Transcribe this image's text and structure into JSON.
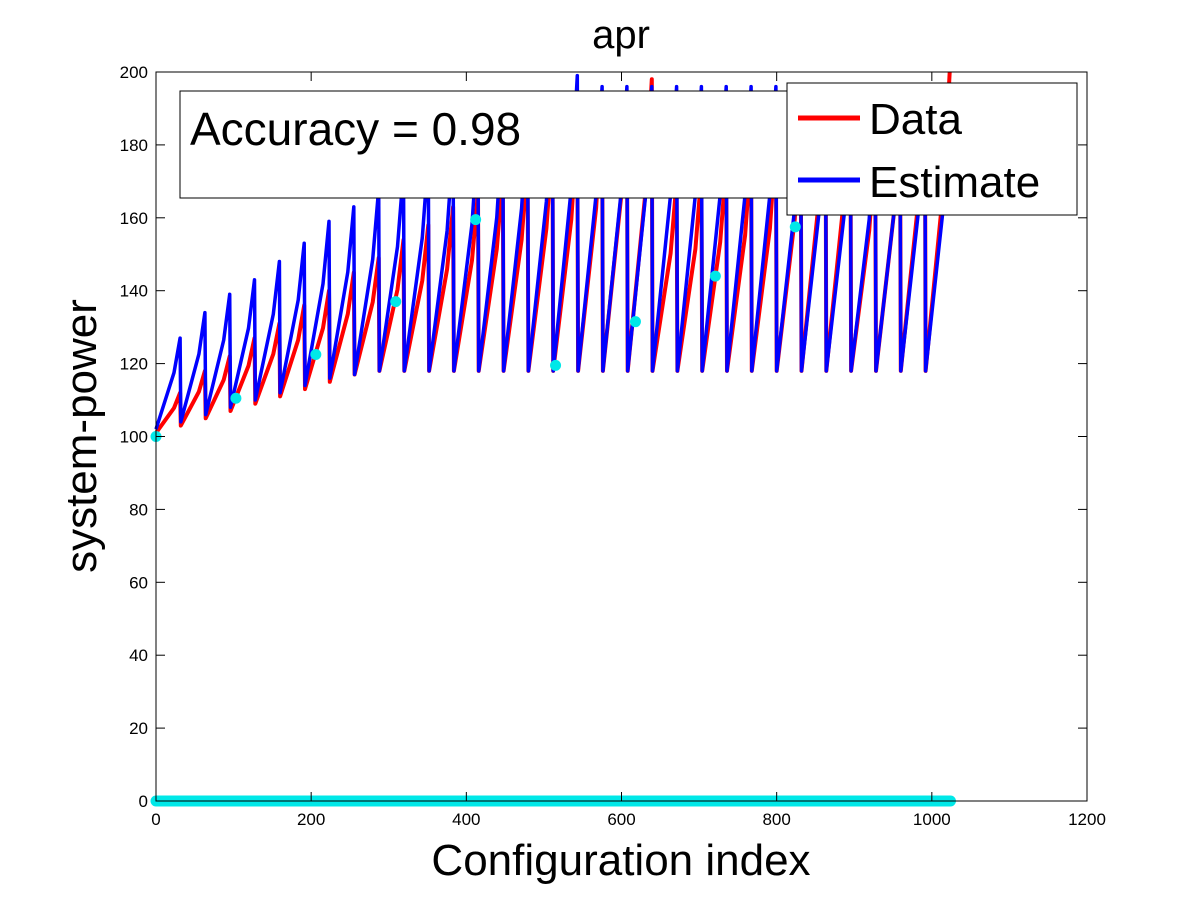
{
  "chart_data": {
    "type": "line",
    "title": "apr",
    "xlabel": "Configuration index",
    "ylabel": "system-power",
    "xlim": [
      0,
      1200
    ],
    "ylim": [
      0,
      200
    ],
    "xticks": [
      0,
      200,
      400,
      600,
      800,
      1000,
      1200
    ],
    "yticks": [
      0,
      20,
      40,
      60,
      80,
      100,
      120,
      140,
      160,
      180,
      200
    ],
    "grid": false,
    "legend_position": "top-right",
    "annotation": "Accuracy = 0.98",
    "cycle_length": 32,
    "series": [
      {
        "name": "Data",
        "color": "#ff0000",
        "cycle_start": [
          101,
          103,
          105,
          107,
          109,
          111,
          113,
          115,
          117,
          118,
          118,
          118,
          118,
          118,
          118,
          118,
          118,
          118,
          118,
          118,
          118,
          118,
          118,
          118,
          118,
          118,
          118,
          118,
          118,
          118,
          118,
          118
        ],
        "cycle_end": [
          112,
          118,
          122,
          127,
          131,
          136,
          140,
          145,
          149,
          154,
          158,
          163,
          167,
          172,
          176,
          181,
          185,
          190,
          194,
          198,
          170,
          172,
          175,
          178,
          181,
          185,
          196,
          196,
          180,
          188,
          195,
          200
        ]
      },
      {
        "name": "Estimate",
        "color": "#0000ff",
        "cycle_start": [
          102,
          104,
          106,
          108,
          110,
          112,
          114,
          116,
          117,
          118,
          118,
          118,
          118,
          118,
          118,
          118,
          118,
          118,
          118,
          118,
          118,
          118,
          118,
          118,
          118,
          118,
          118,
          118,
          118,
          118,
          118,
          118
        ],
        "cycle_end": [
          127,
          134,
          139,
          143,
          148,
          153,
          159,
          163,
          168,
          173,
          177,
          180,
          183,
          186,
          190,
          193,
          199,
          196,
          196,
          196,
          196,
          196,
          196,
          196,
          196,
          190,
          190,
          188,
          185,
          188,
          190,
          192
        ]
      }
    ],
    "markers": {
      "color": "#00e8e8",
      "x": [
        0,
        103,
        206,
        309,
        412,
        515,
        618,
        721,
        824
      ],
      "y": [
        100,
        110.5,
        122.5,
        137,
        159.5,
        119.5,
        131.5,
        144,
        157.5
      ],
      "baseline": {
        "y": 0,
        "x_range": [
          0,
          1024
        ]
      }
    }
  }
}
